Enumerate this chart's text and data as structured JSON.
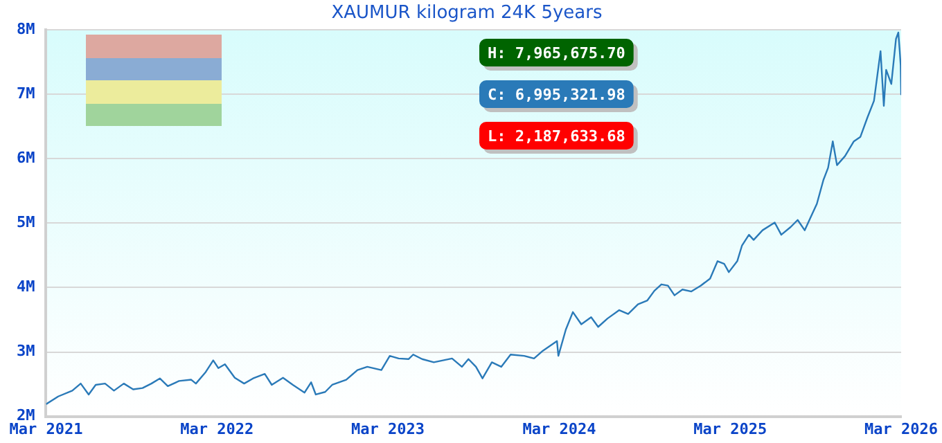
{
  "chart_data": {
    "type": "line",
    "title": "XAUMUR kilogram 24K 5years",
    "x": [
      "2021-03-01",
      "2021-03-27",
      "2021-04-26",
      "2021-05-14",
      "2021-05-31",
      "2021-06-15",
      "2021-07-05",
      "2021-07-24",
      "2021-08-14",
      "2021-09-03",
      "2021-09-23",
      "2021-10-12",
      "2021-10-30",
      "2021-11-16",
      "2021-12-10",
      "2022-01-05",
      "2022-01-15",
      "2022-02-04",
      "2022-02-21",
      "2022-03-04",
      "2022-03-18",
      "2022-04-08",
      "2022-04-28",
      "2022-05-17",
      "2022-06-11",
      "2022-06-26",
      "2022-07-20",
      "2022-08-10",
      "2022-09-04",
      "2022-09-18",
      "2022-09-28",
      "2022-10-18",
      "2022-11-02",
      "2022-12-02",
      "2022-12-26",
      "2023-01-16",
      "2023-02-15",
      "2023-03-05",
      "2023-03-24",
      "2023-04-14",
      "2023-04-24",
      "2023-05-13",
      "2023-06-07",
      "2023-07-16",
      "2023-08-06",
      "2023-08-20",
      "2023-09-05",
      "2023-09-19",
      "2023-10-09",
      "2023-10-29",
      "2023-11-18",
      "2023-12-17",
      "2024-01-07",
      "2024-01-26",
      "2024-02-25",
      "2024-02-28",
      "2024-03-15",
      "2024-03-30",
      "2024-04-17",
      "2024-05-08",
      "2024-05-23",
      "2024-06-12",
      "2024-07-07",
      "2024-07-26",
      "2024-08-16",
      "2024-09-05",
      "2024-09-20",
      "2024-10-05",
      "2024-10-19",
      "2024-11-02",
      "2024-11-19",
      "2024-12-08",
      "2024-12-28",
      "2025-01-17",
      "2025-02-02",
      "2025-02-16",
      "2025-02-26",
      "2025-03-16",
      "2025-03-26",
      "2025-04-10",
      "2025-04-20",
      "2025-05-09",
      "2025-06-04",
      "2025-06-18",
      "2025-07-08",
      "2025-07-23",
      "2025-08-07",
      "2025-08-19",
      "2025-09-02",
      "2025-09-16",
      "2025-09-26",
      "2025-10-06",
      "2025-10-15",
      "2025-11-01",
      "2025-11-20",
      "2025-12-04",
      "2025-12-19",
      "2026-01-02",
      "2026-01-16",
      "2026-01-23",
      "2026-01-28",
      "2026-02-08",
      "2026-02-18",
      "2026-02-23",
      "2026-02-26",
      "2026-02-28",
      "2026-03-01"
    ],
    "series": [
      {
        "color": "#2a7ab8",
        "values": [
          2.19,
          2.31,
          2.4,
          2.51,
          2.34,
          2.49,
          2.51,
          2.4,
          2.51,
          2.42,
          2.44,
          2.51,
          2.59,
          2.47,
          2.55,
          2.57,
          2.51,
          2.68,
          2.87,
          2.75,
          2.81,
          2.6,
          2.51,
          2.59,
          2.66,
          2.49,
          2.6,
          2.49,
          2.37,
          2.53,
          2.34,
          2.38,
          2.49,
          2.57,
          2.72,
          2.77,
          2.72,
          2.94,
          2.9,
          2.89,
          2.96,
          2.89,
          2.84,
          2.9,
          2.77,
          2.89,
          2.77,
          2.59,
          2.84,
          2.77,
          2.96,
          2.94,
          2.9,
          3.02,
          3.17,
          2.94,
          3.35,
          3.62,
          3.43,
          3.54,
          3.39,
          3.52,
          3.65,
          3.59,
          3.74,
          3.8,
          3.95,
          4.05,
          4.03,
          3.88,
          3.97,
          3.94,
          4.03,
          4.14,
          4.41,
          4.37,
          4.24,
          4.41,
          4.65,
          4.82,
          4.74,
          4.89,
          5.01,
          4.82,
          4.94,
          5.05,
          4.89,
          5.08,
          5.3,
          5.67,
          5.86,
          6.27,
          5.9,
          6.04,
          6.27,
          6.34,
          6.64,
          6.9,
          7.67,
          6.82,
          7.38,
          7.16,
          7.86,
          7.96,
          7.67,
          7.45,
          7.0
        ]
      }
    ],
    "ylim": [
      2,
      8
    ],
    "yticks": [
      {
        "value": 2,
        "label": "2M"
      },
      {
        "value": 3,
        "label": "3M"
      },
      {
        "value": 4,
        "label": "4M"
      },
      {
        "value": 5,
        "label": "5M"
      },
      {
        "value": 6,
        "label": "6M"
      },
      {
        "value": 7,
        "label": "7M"
      },
      {
        "value": 8,
        "label": "8M"
      }
    ],
    "xlim": [
      "2021-03-01",
      "2026-03-01"
    ],
    "xticks": [
      {
        "value": "2021-03-01",
        "label": "Mar 2021"
      },
      {
        "value": "2022-03-01",
        "label": "Mar 2022"
      },
      {
        "value": "2023-03-01",
        "label": "Mar 2023"
      },
      {
        "value": "2024-03-01",
        "label": "Mar 2024"
      },
      {
        "value": "2025-03-01",
        "label": "Mar 2025"
      },
      {
        "value": "2026-03-01",
        "label": "Mar 2026"
      }
    ],
    "annotations": [
      "H: 7,965,675.70",
      "C: 6,995,321.98",
      "L: 2,187,633.68"
    ],
    "grid": "y",
    "marker": "none",
    "line_style": "solid",
    "legend": false
  }
}
